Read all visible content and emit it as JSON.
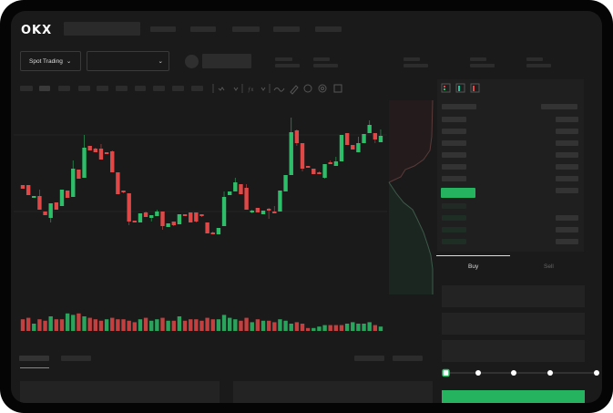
{
  "header": {
    "logo": "OKX"
  },
  "controls": {
    "spot_trading_label": "Spot Trading",
    "chevron": "⌄"
  },
  "trade_form": {
    "buy_tab": "Buy",
    "sell_tab": "Sell",
    "slider_value_percent": 0,
    "slider_steps": [
      0,
      25,
      50,
      75,
      100
    ]
  },
  "colors": {
    "up": "#2ebd68",
    "down": "#e04848",
    "background": "#1a1a1a",
    "accent_green": "#25b35f"
  },
  "chart": {
    "candles_ohlc": [
      [
        97,
        97,
        93,
        93
      ],
      [
        97,
        97,
        86,
        86
      ],
      [
        83,
        85,
        83,
        85
      ],
      [
        85,
        92,
        70,
        70
      ],
      [
        68,
        68,
        64,
        64
      ],
      [
        61,
        77,
        56,
        77
      ],
      [
        78,
        78,
        70,
        70
      ],
      [
        74,
        92,
        74,
        92
      ],
      [
        91,
        91,
        83,
        83
      ],
      [
        84,
        124,
        84,
        115
      ],
      [
        114,
        114,
        104,
        104
      ],
      [
        105,
        152,
        105,
        138
      ],
      [
        140,
        140,
        135,
        135
      ],
      [
        137,
        138,
        133,
        133
      ],
      [
        137,
        142,
        125,
        125
      ],
      [
        133,
        133,
        131,
        131
      ],
      [
        134,
        135,
        111,
        111
      ],
      [
        111,
        111,
        87,
        87
      ],
      [
        91,
        91,
        88,
        89
      ],
      [
        88,
        88,
        53,
        57
      ],
      [
        58,
        58,
        56,
        56
      ],
      [
        56,
        66,
        56,
        66
      ],
      [
        67,
        68,
        62,
        62
      ],
      [
        61,
        64,
        57,
        64
      ],
      [
        63,
        70,
        63,
        68
      ],
      [
        68,
        68,
        48,
        52
      ],
      [
        51,
        55,
        51,
        55
      ],
      [
        57,
        57,
        52,
        53
      ],
      [
        54,
        65,
        54,
        65
      ],
      [
        65,
        65,
        63,
        63
      ],
      [
        67,
        67,
        56,
        56
      ],
      [
        67,
        67,
        56,
        57
      ],
      [
        65,
        65,
        62,
        63
      ],
      [
        56,
        56,
        44,
        44
      ],
      [
        45,
        46,
        43,
        43
      ],
      [
        43,
        50,
        43,
        50
      ],
      [
        52,
        90,
        52,
        84
      ],
      [
        86,
        90,
        86,
        90
      ],
      [
        90,
        105,
        90,
        100
      ],
      [
        98,
        98,
        87,
        87
      ],
      [
        94,
        98,
        70,
        70
      ],
      [
        67,
        70,
        66,
        69
      ],
      [
        72,
        72,
        67,
        67
      ],
      [
        65,
        69,
        65,
        69
      ],
      [
        71,
        72,
        60,
        69
      ],
      [
        68,
        74,
        66,
        66
      ],
      [
        68,
        91,
        68,
        91
      ],
      [
        90,
        108,
        90,
        108
      ],
      [
        108,
        171,
        108,
        155
      ],
      [
        157,
        158,
        140,
        143
      ],
      [
        143,
        143,
        112,
        115
      ],
      [
        118,
        118,
        116,
        116
      ],
      [
        115,
        115,
        109,
        109
      ],
      [
        111,
        112,
        109,
        109
      ],
      [
        105,
        120,
        104,
        120
      ],
      [
        122,
        124,
        120,
        120
      ],
      [
        118,
        128,
        118,
        123
      ],
      [
        123,
        152,
        123,
        152
      ],
      [
        154,
        154,
        141,
        141
      ],
      [
        141,
        141,
        136,
        136
      ],
      [
        133,
        150,
        133,
        143
      ],
      [
        143,
        153,
        143,
        153
      ],
      [
        154,
        168,
        154,
        163
      ],
      [
        154,
        154,
        143,
        147
      ],
      [
        144,
        158,
        144,
        151
      ]
    ],
    "volumes": [
      8,
      9,
      5,
      8,
      7,
      10,
      8,
      8,
      12,
      11,
      12,
      10,
      9,
      8,
      7,
      8,
      9,
      8,
      8,
      7,
      6,
      8,
      9,
      7,
      8,
      9,
      7,
      7,
      10,
      7,
      8,
      8,
      7,
      9,
      8,
      8,
      11,
      9,
      8,
      7,
      9,
      6,
      8,
      7,
      7,
      6,
      8,
      7,
      5,
      6,
      5,
      2,
      2,
      3,
      4,
      4,
      4,
      4,
      5,
      6,
      5,
      5,
      6,
      4,
      3
    ],
    "volume_colors": [
      "d",
      "d",
      "u",
      "d",
      "d",
      "u",
      "d",
      "d",
      "u",
      "u",
      "d",
      "u",
      "d",
      "d",
      "d",
      "u",
      "d",
      "d",
      "d",
      "d",
      "d",
      "u",
      "d",
      "u",
      "u",
      "d",
      "u",
      "d",
      "u",
      "d",
      "d",
      "d",
      "d",
      "d",
      "d",
      "u",
      "u",
      "u",
      "u",
      "d",
      "d",
      "u",
      "d",
      "u",
      "d",
      "d",
      "u",
      "u",
      "u",
      "d",
      "d",
      "d",
      "u",
      "u",
      "u",
      "d",
      "d",
      "d",
      "u",
      "u",
      "u",
      "u",
      "u",
      "d",
      "u"
    ]
  }
}
